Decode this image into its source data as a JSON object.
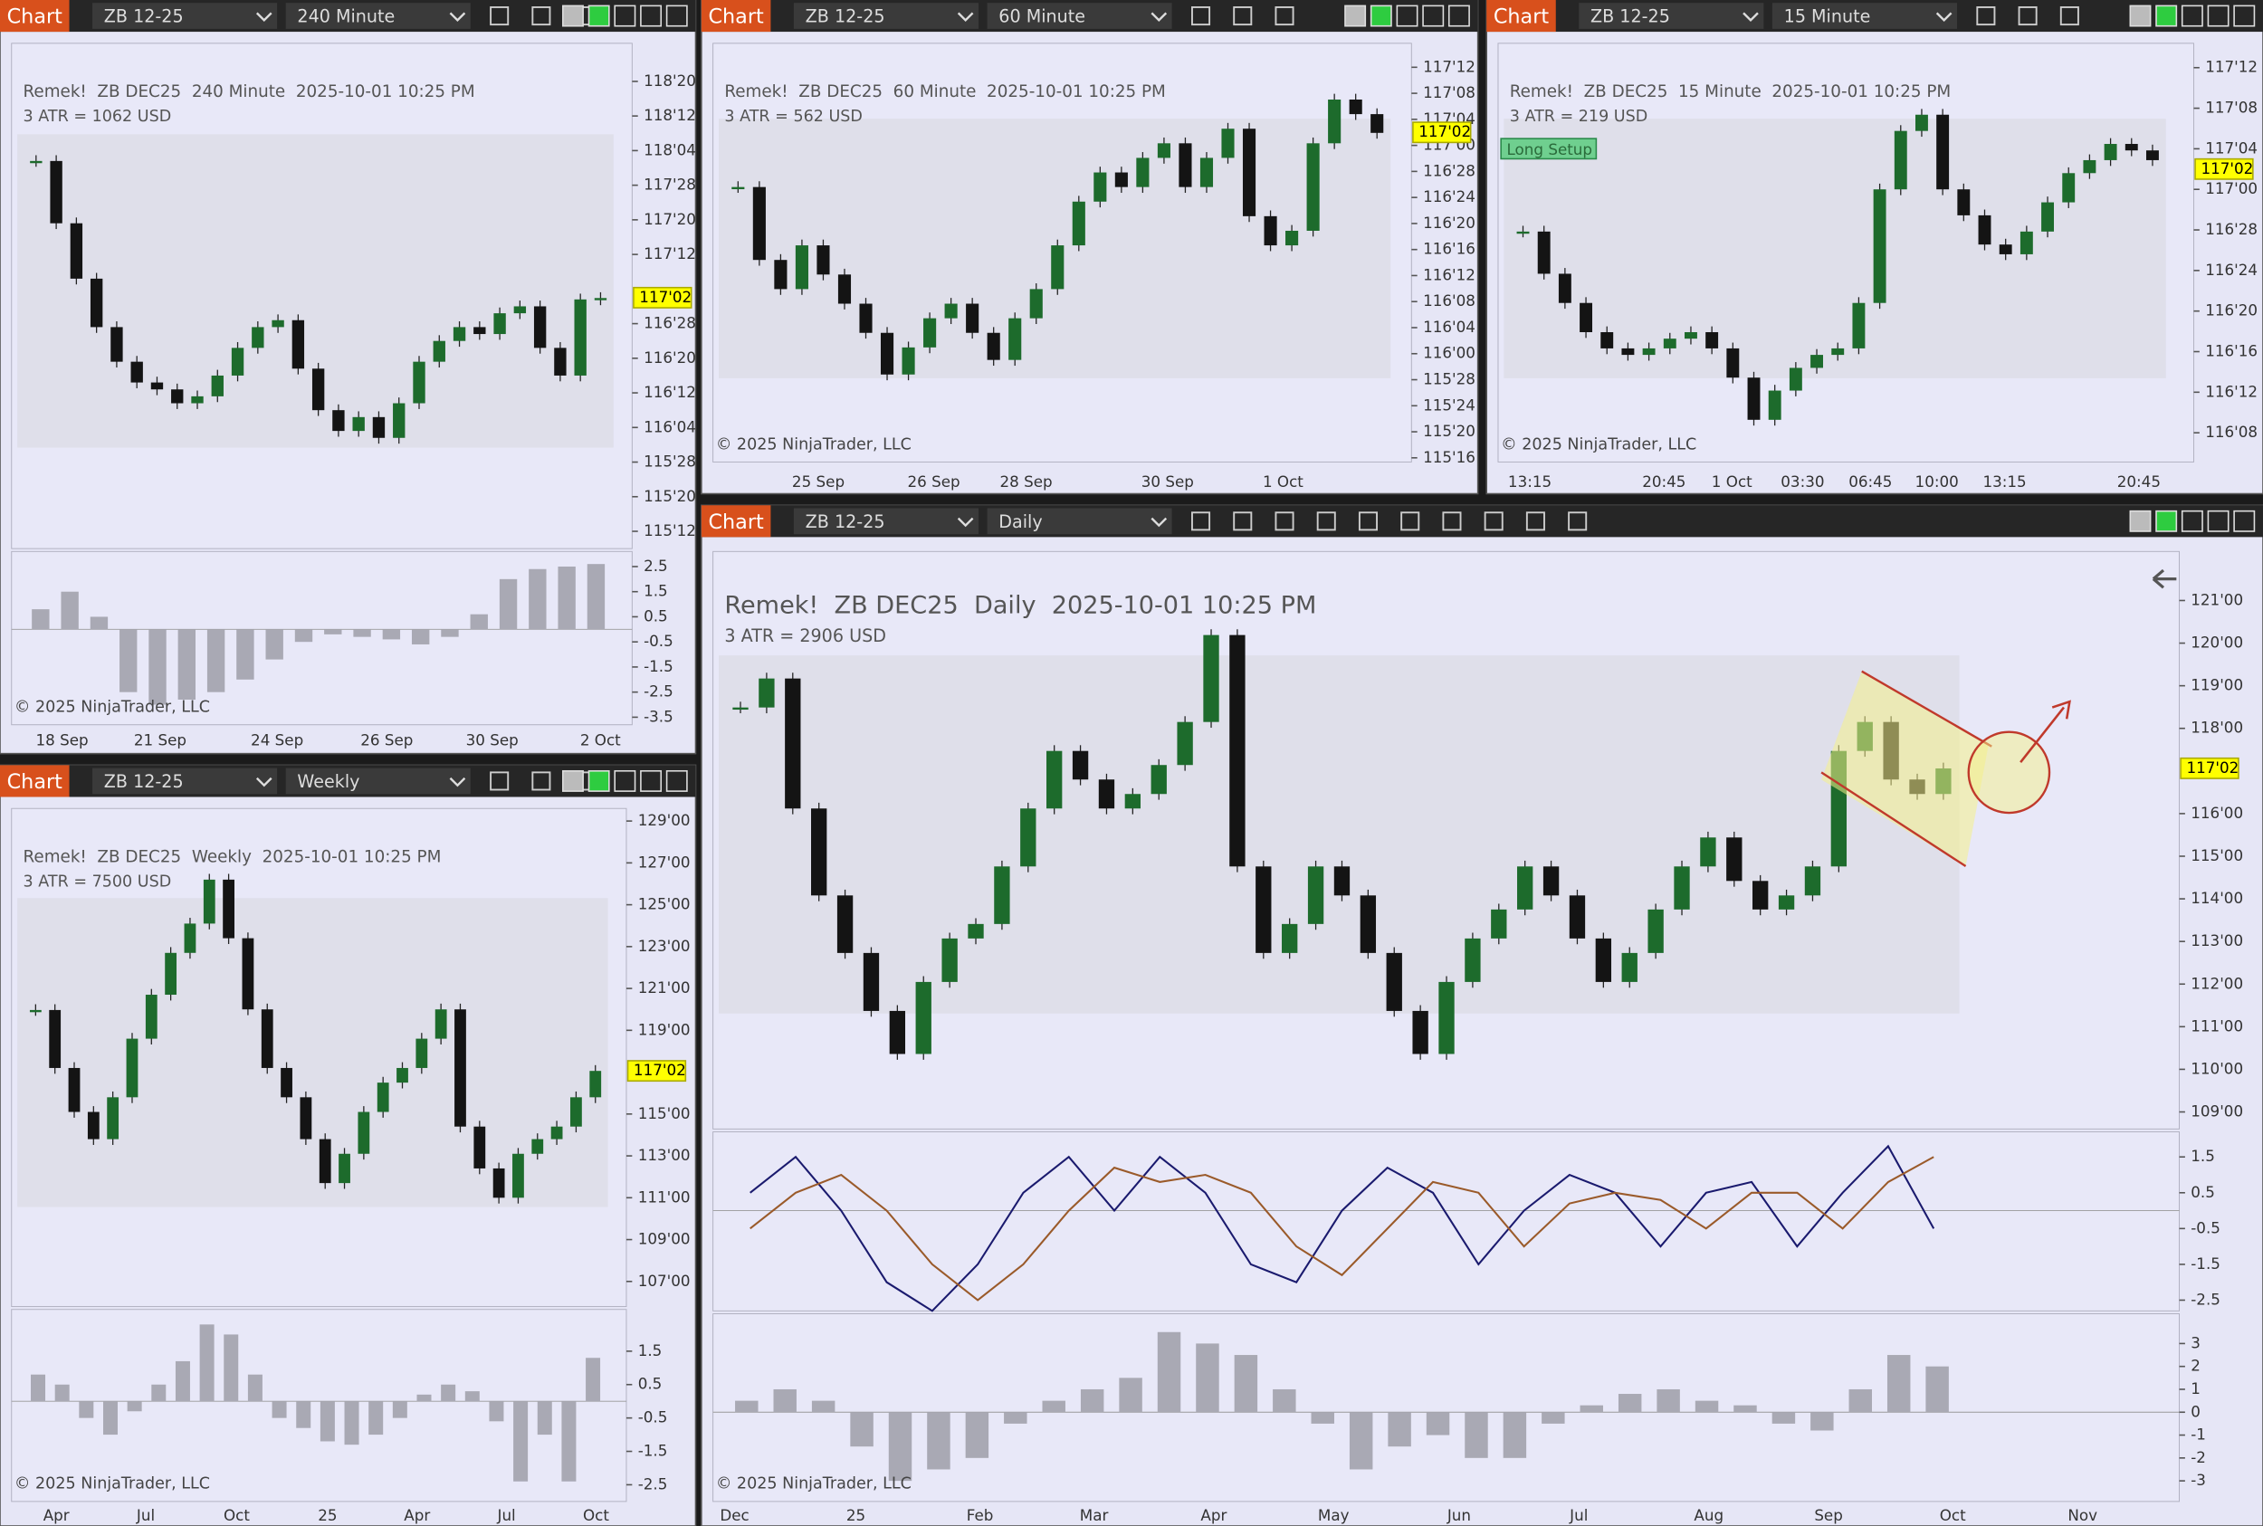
{
  "toolbars": [
    {
      "button": "Chart",
      "instrument": "ZB 12-25",
      "interval": "240 Minute"
    },
    {
      "button": "Chart",
      "instrument": "ZB 12-25",
      "interval": "60 Minute"
    },
    {
      "button": "Chart",
      "instrument": "ZB 12-25",
      "interval": "15 Minute"
    },
    {
      "button": "Chart",
      "instrument": "ZB 12-25",
      "interval": "Weekly"
    },
    {
      "button": "Chart",
      "instrument": "ZB 12-25",
      "interval": "Daily"
    }
  ],
  "chart_data": [
    {
      "type": "candlestick",
      "title": "Remek!  ZB DEC25  240 Minute  2025-10-01 10:25 PM",
      "atr_text": "3 ATR = 1062 USD",
      "copyright": "© 2025 NinjaTrader, LLC",
      "up_color": "#1d6b2c",
      "down_color": "#141414",
      "price_label": {
        "value": 117.0625,
        "label": "117'02"
      },
      "closes": [
        118.05,
        117.6,
        117.2,
        116.85,
        116.6,
        116.45,
        116.4,
        116.3,
        116.35,
        116.5,
        116.7,
        116.85,
        116.9,
        116.55,
        116.25,
        116.1,
        116.2,
        116.05,
        116.3,
        116.6,
        116.75,
        116.85,
        116.8,
        116.95,
        117.0,
        116.7,
        116.5,
        117.05,
        117.06
      ],
      "ylim": [
        115.25,
        118.9
      ],
      "yticks": [
        {
          "value": 118.625,
          "label": "118'20"
        },
        {
          "value": 118.375,
          "label": "118'12"
        },
        {
          "value": 118.125,
          "label": "118'04"
        },
        {
          "value": 117.875,
          "label": "117'28"
        },
        {
          "value": 117.625,
          "label": "117'20"
        },
        {
          "value": 117.375,
          "label": "117'12"
        },
        {
          "value": 116.875,
          "label": "116'28"
        },
        {
          "value": 116.625,
          "label": "116'20"
        },
        {
          "value": 116.375,
          "label": "116'12"
        },
        {
          "value": 116.125,
          "label": "116'04"
        },
        {
          "value": 115.875,
          "label": "115'28"
        },
        {
          "value": 115.625,
          "label": "115'20"
        },
        {
          "value": 115.375,
          "label": "115'12"
        }
      ],
      "x_labels": [
        "18 Sep",
        "21 Sep",
        "24 Sep",
        "26 Sep",
        "30 Sep",
        "2 Oct"
      ],
      "indicators": [
        {
          "type": "histogram",
          "color": "#a9a9b4",
          "ylim": [
            -3.8,
            3.1
          ],
          "yticks": [
            2.5,
            1.5,
            0.5,
            -0.5,
            -1.5,
            -2.5,
            -3.5
          ],
          "values": [
            0.8,
            1.5,
            0.5,
            -2.5,
            -3.0,
            -2.8,
            -2.5,
            -2.0,
            -1.2,
            -0.5,
            -0.2,
            -0.3,
            -0.4,
            -0.6,
            -0.3,
            0.6,
            2.0,
            2.4,
            2.5,
            2.6
          ]
        }
      ]
    },
    {
      "type": "candlestick",
      "title": "Remek!  ZB DEC25  60 Minute  2025-10-01 10:25 PM",
      "atr_text": "3 ATR = 562 USD",
      "copyright": "© 2025 NinjaTrader, LLC",
      "up_color": "#1d6b2c",
      "down_color": "#141414",
      "price_label": {
        "value": 117.0625,
        "label": "117'02"
      },
      "closes": [
        116.8,
        116.45,
        116.31,
        116.52,
        116.38,
        116.24,
        116.1,
        115.9,
        116.03,
        116.17,
        116.24,
        116.1,
        115.97,
        116.17,
        116.31,
        116.52,
        116.73,
        116.87,
        116.8,
        116.94,
        117.01,
        116.8,
        116.94,
        117.08,
        116.66,
        116.52,
        116.59,
        117.01,
        117.22,
        117.15,
        117.06
      ],
      "ylim": [
        115.48,
        117.49
      ],
      "yticks": [
        {
          "value": 117.375,
          "label": "117'12"
        },
        {
          "value": 117.25,
          "label": "117'08"
        },
        {
          "value": 117.125,
          "label": "117'04"
        },
        {
          "value": 117.0,
          "label": "117'00"
        },
        {
          "value": 116.875,
          "label": "116'28"
        },
        {
          "value": 116.75,
          "label": "116'24"
        },
        {
          "value": 116.625,
          "label": "116'20"
        },
        {
          "value": 116.5,
          "label": "116'16"
        },
        {
          "value": 116.375,
          "label": "116'12"
        },
        {
          "value": 116.25,
          "label": "116'08"
        },
        {
          "value": 116.125,
          "label": "116'04"
        },
        {
          "value": 116.0,
          "label": "116'00"
        },
        {
          "value": 115.875,
          "label": "115'28"
        },
        {
          "value": 115.75,
          "label": "115'24"
        },
        {
          "value": 115.625,
          "label": "115'20"
        },
        {
          "value": 115.5,
          "label": "115'16"
        }
      ],
      "x_labels": [
        "25 Sep",
        "26 Sep",
        "28 Sep",
        "30 Sep",
        "1 Oct"
      ],
      "indicators": []
    },
    {
      "type": "candlestick",
      "title": "Remek!  ZB DEC25  15 Minute  2025-10-01 10:25 PM",
      "atr_text": "3 ATR = 219 USD",
      "copyright": "© 2025 NinjaTrader, LLC",
      "setup_label": "Long Setup",
      "up_color": "#1d6b2c",
      "down_color": "#141414",
      "price_label": {
        "value": 117.0625,
        "label": "117'02"
      },
      "closes": [
        116.87,
        116.74,
        116.65,
        116.56,
        116.51,
        116.49,
        116.51,
        116.54,
        116.56,
        116.51,
        116.42,
        116.29,
        116.38,
        116.45,
        116.49,
        116.51,
        116.65,
        117.0,
        117.18,
        117.23,
        117.0,
        116.92,
        116.83,
        116.8,
        116.87,
        116.96,
        117.05,
        117.09,
        117.14,
        117.12,
        117.09
      ],
      "ylim": [
        116.16,
        117.45
      ],
      "yticks": [
        {
          "value": 117.375,
          "label": "117'12"
        },
        {
          "value": 117.25,
          "label": "117'08"
        },
        {
          "value": 117.125,
          "label": "117'04"
        },
        {
          "value": 117.0,
          "label": "117'00"
        },
        {
          "value": 116.875,
          "label": "116'28"
        },
        {
          "value": 116.75,
          "label": "116'24"
        },
        {
          "value": 116.625,
          "label": "116'20"
        },
        {
          "value": 116.5,
          "label": "116'16"
        },
        {
          "value": 116.375,
          "label": "116'12"
        },
        {
          "value": 116.25,
          "label": "116'08"
        }
      ],
      "x_labels": [
        "13:15",
        "20:45",
        "1 Oct",
        "03:30",
        "06:45",
        "10:00",
        "13:15",
        "20:45"
      ],
      "indicators": []
    },
    {
      "type": "candlestick",
      "title": "Remek!  ZB DEC25  Weekly  2025-10-01 10:25 PM",
      "atr_text": "3 ATR = 7500 USD",
      "copyright": "© 2025 NinjaTrader, LLC",
      "up_color": "#1d6b2c",
      "down_color": "#141414",
      "price_label": {
        "value": 117.0625,
        "label": "117'02"
      },
      "closes": [
        119.97,
        117.2,
        115.1,
        113.8,
        115.8,
        118.6,
        120.7,
        122.7,
        124.1,
        126.2,
        123.4,
        120.0,
        117.2,
        115.8,
        113.8,
        111.7,
        113.1,
        115.1,
        116.5,
        117.2,
        118.6,
        120.0,
        114.4,
        112.4,
        111.0,
        113.1,
        113.8,
        114.4,
        115.8,
        117.06
      ],
      "ylim": [
        105.8,
        129.6
      ],
      "yticks": [
        {
          "value": 129,
          "label": "129'00"
        },
        {
          "value": 127,
          "label": "127'00"
        },
        {
          "value": 125,
          "label": "125'00"
        },
        {
          "value": 123,
          "label": "123'00"
        },
        {
          "value": 121,
          "label": "121'00"
        },
        {
          "value": 119,
          "label": "119'00"
        },
        {
          "value": 115,
          "label": "115'00"
        },
        {
          "value": 113,
          "label": "113'00"
        },
        {
          "value": 111,
          "label": "111'00"
        },
        {
          "value": 109,
          "label": "109'00"
        },
        {
          "value": 107,
          "label": "107'00"
        }
      ],
      "x_labels": [
        "Apr",
        "Jul",
        "Oct",
        "25",
        "Apr",
        "Jul",
        "Oct"
      ],
      "indicators": [
        {
          "type": "histogram",
          "color": "#a9a9b4",
          "ylim": [
            -3.0,
            2.75
          ],
          "yticks": [
            1.5,
            0.5,
            -0.5,
            -1.5,
            -2.5
          ],
          "values": [
            0.8,
            0.5,
            -0.5,
            -1.0,
            -0.3,
            0.5,
            1.2,
            2.3,
            2.0,
            0.8,
            -0.5,
            -0.8,
            -1.2,
            -1.3,
            -1.0,
            -0.5,
            0.2,
            0.5,
            0.3,
            -0.6,
            -2.4,
            -1.0,
            -2.4,
            1.3
          ]
        }
      ]
    },
    {
      "type": "candlestick",
      "title": "Remek!  ZB DEC25  Daily  2025-10-01 10:25 PM",
      "atr_text": "3 ATR = 2906 USD",
      "copyright": "© 2025 NinjaTrader, LLC",
      "up_color": "#1d6b2c",
      "down_color": "#141414",
      "price_label": {
        "value": 117.0625,
        "label": "117'02"
      },
      "closes": [
        118.49,
        119.17,
        116.12,
        114.08,
        112.73,
        111.37,
        110.36,
        112.05,
        113.07,
        113.41,
        114.76,
        116.12,
        117.47,
        116.8,
        116.12,
        116.46,
        117.14,
        118.15,
        120.19,
        114.76,
        112.73,
        113.41,
        114.76,
        114.08,
        112.73,
        111.37,
        110.36,
        112.05,
        113.07,
        113.75,
        114.76,
        114.08,
        113.07,
        112.05,
        112.73,
        113.75,
        114.76,
        115.44,
        114.42,
        113.75,
        114.08,
        114.76,
        117.47,
        118.15,
        116.8,
        116.46,
        117.06
      ],
      "ylim": [
        108.6,
        122.15
      ],
      "yticks": [
        {
          "value": 121,
          "label": "121'00"
        },
        {
          "value": 120,
          "label": "120'00"
        },
        {
          "value": 119,
          "label": "119'00"
        },
        {
          "value": 118,
          "label": "118'00"
        },
        {
          "value": 116,
          "label": "116'00"
        },
        {
          "value": 115,
          "label": "115'00"
        },
        {
          "value": 114,
          "label": "114'00"
        },
        {
          "value": 113,
          "label": "113'00"
        },
        {
          "value": 112,
          "label": "112'00"
        },
        {
          "value": 111,
          "label": "111'00"
        },
        {
          "value": 110,
          "label": "110'00"
        },
        {
          "value": 109,
          "label": "109'00"
        }
      ],
      "x_labels": [
        "Dec",
        "25",
        "Feb",
        "Mar",
        "Apr",
        "May",
        "Jun",
        "Jul",
        "Aug",
        "Sep",
        "Oct",
        "Nov"
      ],
      "indicators": [
        {
          "type": "lines",
          "ylim": [
            -2.8,
            2.2
          ],
          "yticks": [
            1.5,
            0.5,
            -0.5,
            -1.5,
            -2.5
          ],
          "series": [
            {
              "color": "#1a1a6e",
              "values": [
                0.5,
                1.5,
                0.0,
                -2.0,
                -2.8,
                -1.5,
                0.5,
                1.5,
                0.0,
                1.5,
                0.5,
                -1.5,
                -2.0,
                0.0,
                1.2,
                0.5,
                -1.5,
                0.0,
                1.0,
                0.5,
                -1.0,
                0.5,
                0.8,
                -1.0,
                0.5,
                1.8,
                -0.5
              ]
            },
            {
              "color": "#9a5a2a",
              "values": [
                -0.5,
                0.5,
                1.0,
                0.0,
                -1.5,
                -2.5,
                -1.5,
                0.0,
                1.2,
                0.8,
                1.0,
                0.5,
                -1.0,
                -1.8,
                -0.5,
                0.8,
                0.5,
                -1.0,
                0.2,
                0.5,
                0.3,
                -0.5,
                0.5,
                0.5,
                -0.5,
                0.8,
                1.5
              ]
            }
          ]
        },
        {
          "type": "histogram",
          "color": "#a9a9b4",
          "ylim": [
            -3.9,
            4.3
          ],
          "yticks": [
            3,
            2,
            1,
            0,
            -1,
            -2,
            -3
          ],
          "values": [
            0.5,
            1.0,
            0.5,
            -1.5,
            -3.0,
            -2.5,
            -2.0,
            -0.5,
            0.5,
            1.0,
            1.5,
            3.5,
            3.0,
            2.5,
            1.0,
            -0.5,
            -2.5,
            -1.5,
            -1.0,
            -2.0,
            -2.0,
            -0.5,
            0.3,
            0.8,
            1.0,
            0.5,
            0.3,
            -0.5,
            -0.8,
            1.0,
            2.5,
            2.0
          ]
        }
      ]
    }
  ]
}
